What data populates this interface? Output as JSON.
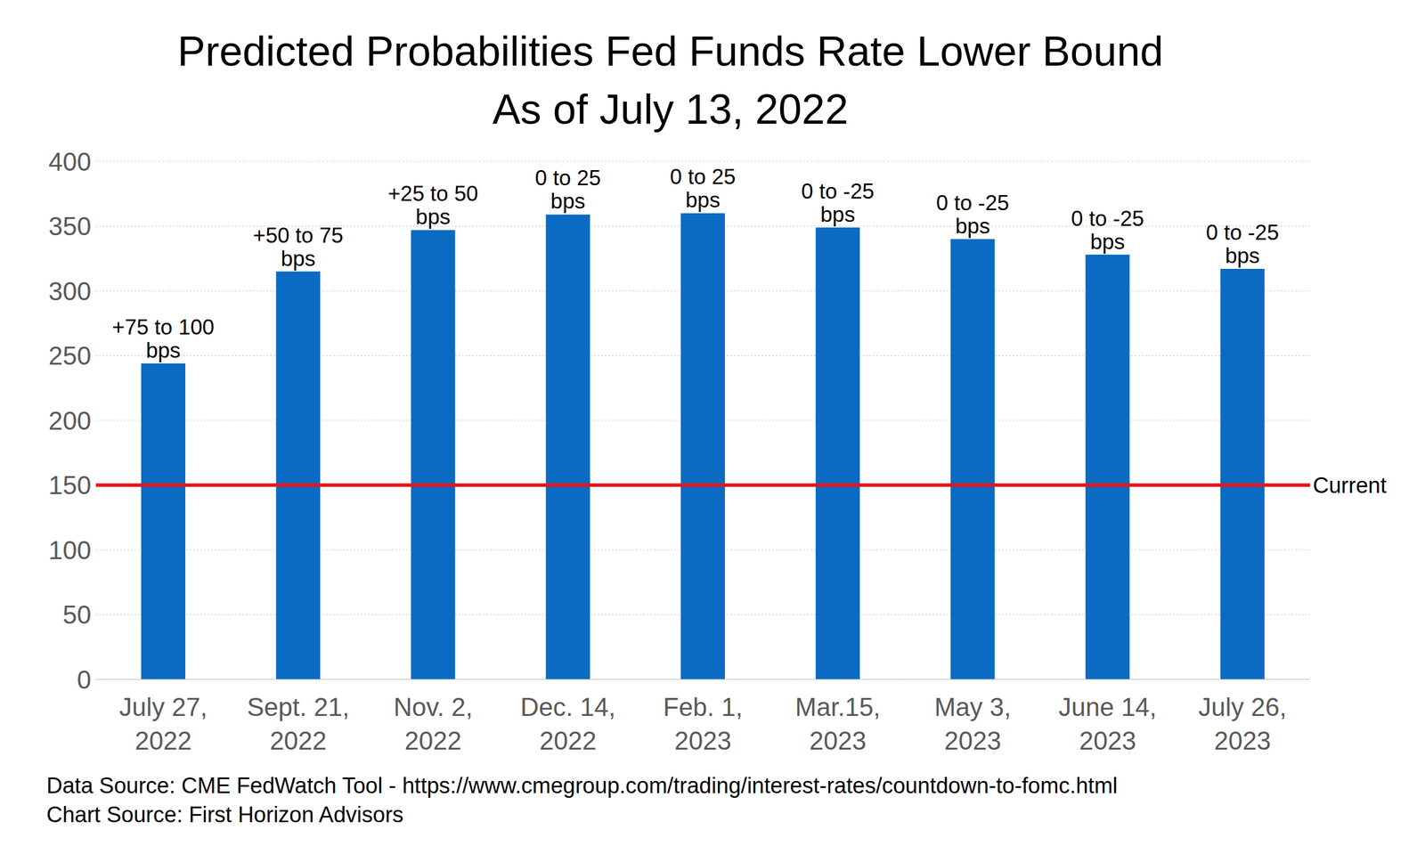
{
  "chart_data": {
    "type": "bar",
    "title": "Predicted Probabilities Fed Funds Rate Lower Bound",
    "subtitle": "As of July 13, 2022",
    "categories": [
      "July 27, 2022",
      "Sept. 21, 2022",
      "Nov. 2, 2022",
      "Dec. 14, 2022",
      "Feb. 1, 2023",
      "Mar.15, 2023",
      "May 3, 2023",
      "June 14, 2023",
      "July 26, 2023"
    ],
    "values": [
      244,
      315,
      347,
      359,
      360,
      349,
      340,
      328,
      317
    ],
    "annotations": [
      "+75 to 100 bps",
      "+50 to 75 bps",
      "+25 to 50 bps",
      "0 to 25 bps",
      "0 to 25 bps",
      "0 to -25 bps",
      "0 to -25 bps",
      "0 to -25 bps",
      "0 to -25 bps"
    ],
    "color": "#0b6bc3",
    "ylim": [
      0,
      400
    ],
    "yticks": [
      0,
      50,
      100,
      150,
      200,
      250,
      300,
      350,
      400
    ],
    "grid": true,
    "reference_line": {
      "value": 150,
      "label": "Current",
      "color": "#e8141a"
    },
    "footnotes": [
      "Data Source: CME FedWatch Tool - https://www.cmegroup.com/trading/interest-rates/countdown-to-fomc.html",
      "Chart Source: First Horizon Advisors"
    ]
  }
}
